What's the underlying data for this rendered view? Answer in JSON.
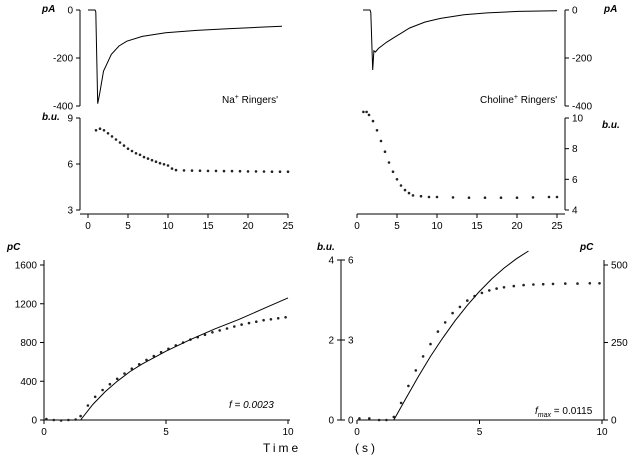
{
  "figure": {
    "xlabel_main": "Time",
    "xlabel_unit": "(s)"
  },
  "chart_data": [
    {
      "id": "current-na",
      "type": "line",
      "ylabel": "pA",
      "ylim": [
        -400,
        0
      ],
      "yticks": [
        0,
        -200,
        -400
      ],
      "y_axis_side": "left",
      "annotation": "Na",
      "annotation_sup": "+",
      "annotation_tail": " Ringers'",
      "xlim": [
        0,
        25
      ],
      "series": [
        {
          "x": [
            0,
            0.9,
            1.0,
            1.25,
            1.5,
            2,
            3,
            4,
            5,
            7,
            10,
            14,
            18,
            22,
            25
          ],
          "y": [
            0,
            0,
            -8,
            -390,
            -350,
            -255,
            -185,
            -150,
            -130,
            -110,
            -95,
            -85,
            -78,
            -72,
            -68
          ]
        }
      ]
    },
    {
      "id": "current-choline",
      "type": "line",
      "ylabel": "pA",
      "ylim": [
        -400,
        0
      ],
      "yticks": [
        0,
        -200,
        -400
      ],
      "y_axis_side": "right",
      "annotation": "Choline",
      "annotation_sup": "+",
      "annotation_tail": " Ringers'",
      "xlim": [
        0,
        25
      ],
      "series": [
        {
          "x": [
            0,
            0.9,
            1.0,
            1.25,
            1.4,
            1.6,
            2,
            3,
            4,
            5,
            6,
            8,
            10,
            13,
            16,
            20,
            25
          ],
          "y": [
            0,
            0,
            -10,
            -250,
            -170,
            -175,
            -160,
            -135,
            -115,
            -95,
            -75,
            -50,
            -35,
            -20,
            -12,
            -6,
            -3
          ]
        }
      ]
    },
    {
      "id": "fluor-na",
      "type": "scatter",
      "ylabel": "b.u.",
      "ylim": [
        3,
        9
      ],
      "yticks": [
        3,
        6,
        9
      ],
      "y_axis_side": "left",
      "xlim": [
        0,
        25
      ],
      "xticks": [
        0,
        5,
        10,
        15,
        20,
        25
      ],
      "series": [
        {
          "x": [
            1,
            1.5,
            2,
            2.5,
            3,
            3.5,
            4,
            4.5,
            5,
            5.5,
            6,
            6.5,
            7,
            7.5,
            8,
            8.5,
            9,
            9.5,
            10,
            10.5,
            11,
            12,
            13,
            14,
            15,
            16,
            17,
            18,
            19,
            20,
            21,
            22,
            23,
            24,
            25
          ],
          "y": [
            8.2,
            8.3,
            8.2,
            8.0,
            7.8,
            7.6,
            7.4,
            7.2,
            7.0,
            6.85,
            6.7,
            6.6,
            6.45,
            6.35,
            6.25,
            6.15,
            6.05,
            5.98,
            5.9,
            5.7,
            5.6,
            5.58,
            5.57,
            5.56,
            5.55,
            5.55,
            5.54,
            5.54,
            5.53,
            5.52,
            5.52,
            5.51,
            5.5,
            5.5,
            5.5
          ]
        }
      ]
    },
    {
      "id": "fluor-choline",
      "type": "scatter",
      "ylabel": "b.u.",
      "ylim": [
        4,
        10
      ],
      "yticks": [
        4,
        6,
        8,
        10
      ],
      "y_axis_side": "right",
      "xlim": [
        0,
        25
      ],
      "xticks": [
        0,
        5,
        10,
        15,
        20,
        25
      ],
      "series": [
        {
          "x": [
            0.8,
            1.2,
            1.5,
            2.0,
            2.5,
            3.0,
            3.5,
            4.0,
            4.5,
            5.0,
            5.5,
            6.0,
            6.5,
            7.0,
            8,
            9,
            10,
            12,
            14,
            16,
            18,
            20,
            22,
            24,
            25
          ],
          "y": [
            10.4,
            10.4,
            10.2,
            9.8,
            9.2,
            8.5,
            7.8,
            7.1,
            6.5,
            6.0,
            5.6,
            5.3,
            5.1,
            4.95,
            4.9,
            4.85,
            4.85,
            4.82,
            4.8,
            4.8,
            4.8,
            4.8,
            4.82,
            4.85,
            4.85
          ]
        }
      ]
    },
    {
      "id": "charge-na",
      "type": "scatter",
      "ylabel": "pC",
      "ylim": [
        0,
        1600
      ],
      "yticks": [
        0,
        400,
        800,
        1200,
        1600
      ],
      "y_axis_side": "left",
      "xlim": [
        0,
        10
      ],
      "xticks": [
        0,
        5,
        10
      ],
      "annotation": "f = 0.0023",
      "series": [
        {
          "name": "data",
          "x": [
            0.1,
            0.4,
            0.7,
            1.0,
            1.3,
            1.5,
            1.8,
            2.1,
            2.4,
            2.7,
            3.0,
            3.3,
            3.6,
            3.9,
            4.2,
            4.5,
            4.8,
            5.1,
            5.4,
            5.7,
            6.0,
            6.3,
            6.6,
            6.9,
            7.2,
            7.5,
            7.8,
            8.1,
            8.4,
            8.7,
            9.0,
            9.3,
            9.6,
            9.9
          ],
          "y": [
            10,
            0,
            -5,
            0,
            5,
            40,
            150,
            240,
            310,
            370,
            425,
            480,
            530,
            575,
            620,
            660,
            700,
            735,
            770,
            800,
            830,
            855,
            880,
            905,
            925,
            945,
            965,
            985,
            1000,
            1015,
            1030,
            1040,
            1050,
            1060
          ]
        },
        {
          "name": "fit",
          "x": [
            1.5,
            2,
            2.5,
            3,
            3.5,
            4,
            5,
            6,
            7,
            8,
            9,
            10
          ],
          "y": [
            0,
            160,
            290,
            400,
            495,
            575,
            710,
            830,
            940,
            1040,
            1150,
            1260
          ]
        }
      ]
    },
    {
      "id": "charge-choline",
      "type": "scatter",
      "ylabel": "pC",
      "ylim": [
        0,
        500
      ],
      "yticks": [
        0,
        250,
        500
      ],
      "y_axis_side": "right",
      "xlim": [
        0,
        10
      ],
      "xticks": [
        0,
        5,
        10
      ],
      "annotation": "f",
      "annotation_sub": "max",
      "annotation_tail": " = 0.0115",
      "series": [
        {
          "name": "data",
          "x": [
            0.1,
            0.5,
            0.9,
            1.2,
            1.5,
            1.8,
            2.1,
            2.4,
            2.7,
            3.0,
            3.3,
            3.6,
            3.9,
            4.2,
            4.5,
            4.8,
            5.1,
            5.4,
            5.7,
            6.0,
            6.4,
            6.8,
            7.2,
            7.6,
            8.0,
            8.5,
            9.0,
            9.5,
            9.9
          ],
          "y": [
            5,
            5,
            0,
            0,
            10,
            55,
            110,
            160,
            205,
            245,
            285,
            315,
            345,
            365,
            385,
            400,
            410,
            418,
            424,
            428,
            432,
            435,
            437,
            438,
            439,
            440,
            440,
            441,
            441
          ]
        },
        {
          "name": "fit",
          "x": [
            1.5,
            2,
            2.5,
            3,
            3.5,
            4,
            4.5,
            5,
            5.5,
            6,
            6.5,
            7.0
          ],
          "y": [
            0,
            70,
            140,
            205,
            265,
            320,
            370,
            415,
            455,
            490,
            520,
            545
          ]
        }
      ]
    },
    {
      "id": "bu-scale-bar",
      "type": "table",
      "ylabel": "b.u.",
      "left_ticks": [
        0,
        2,
        4
      ],
      "right_ticks": [
        0,
        3,
        6
      ]
    }
  ]
}
